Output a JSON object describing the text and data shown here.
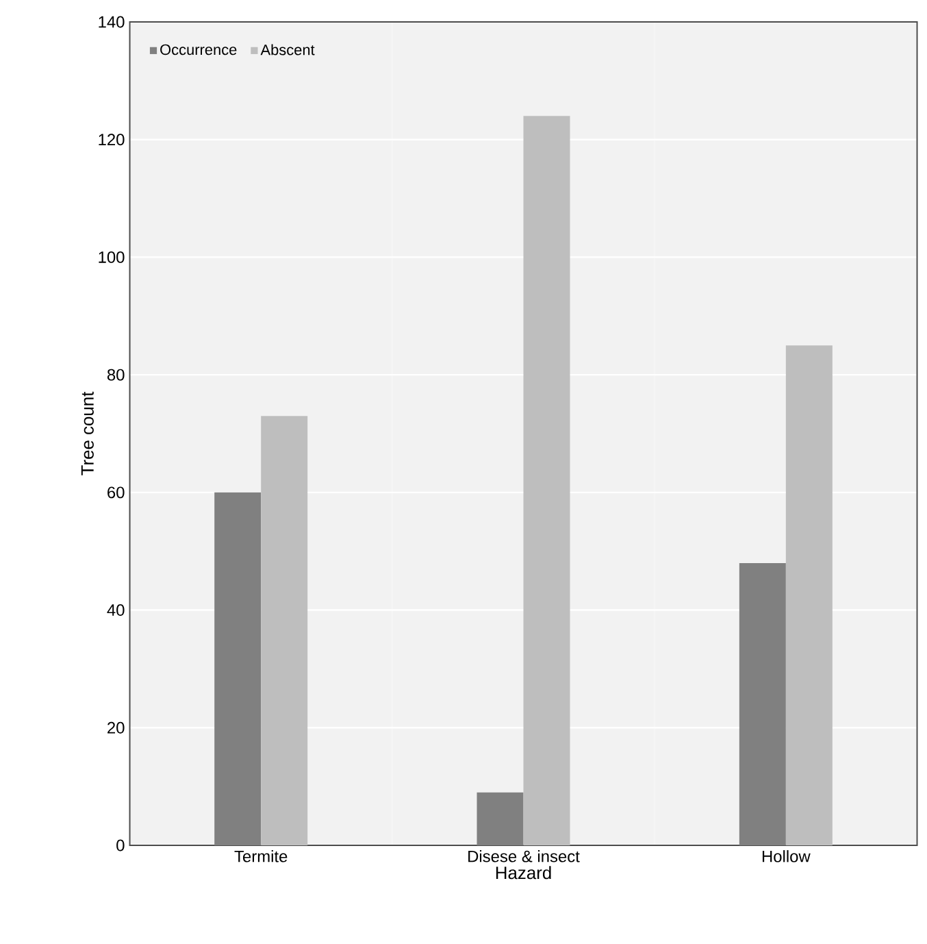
{
  "chart_data": {
    "type": "bar",
    "xlabel": "Hazard",
    "ylabel": "Tree count",
    "categories": [
      "Termite",
      "Disese & insect",
      "Hollow"
    ],
    "series": [
      {
        "name": "Occurrence",
        "color": "#808080",
        "values": [
          60,
          9,
          48
        ]
      },
      {
        "name": "Abscent",
        "color": "#bebebe",
        "values": [
          73,
          124,
          85
        ]
      }
    ],
    "ylim": [
      0,
      140
    ],
    "yticks": [
      0,
      20,
      40,
      60,
      80,
      100,
      120,
      140
    ],
    "grid": true,
    "legend": "top left"
  }
}
